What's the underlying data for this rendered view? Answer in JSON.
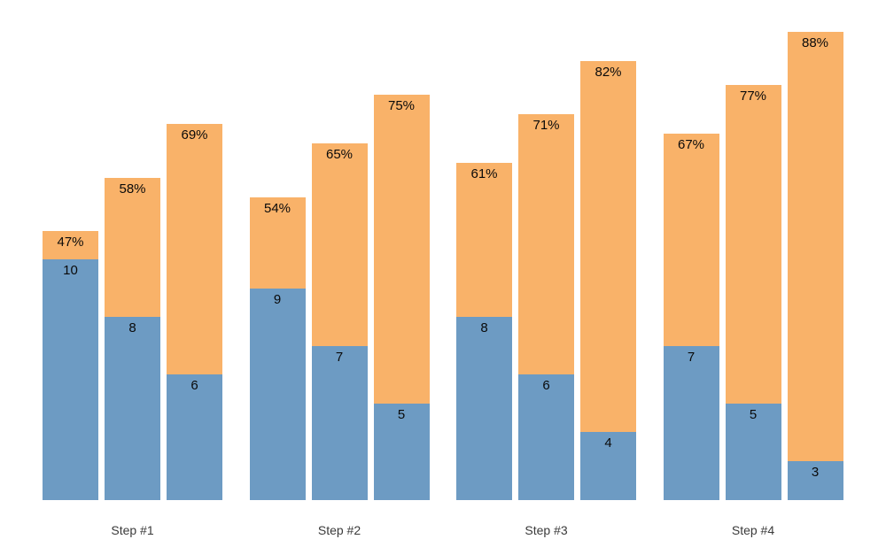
{
  "chart_data": {
    "type": "bar",
    "subtype": "grouped-stacked",
    "title": "",
    "xlabel": "",
    "ylabel": "",
    "grid": false,
    "legend": false,
    "axes_visible": false,
    "background_color": "#ffffff",
    "colors": {
      "bottom_segment": "#6d9bc3",
      "top_segment": "#f9b269",
      "bar_label_text": "#0a0a0a",
      "category_label_text": "#3a3a3a"
    },
    "categories": [
      "Step #1",
      "Step #2",
      "Step #3",
      "Step #4"
    ],
    "series": [
      {
        "name": "bottom-blue-values",
        "values_by_group": [
          [
            10,
            8,
            6
          ],
          [
            9,
            7,
            5
          ],
          [
            8,
            6,
            4
          ],
          [
            7,
            5,
            3
          ]
        ]
      },
      {
        "name": "top-orange-percentages",
        "values_by_group": [
          [
            47,
            58,
            69
          ],
          [
            54,
            65,
            75
          ],
          [
            61,
            71,
            82
          ],
          [
            67,
            77,
            88
          ]
        ]
      }
    ],
    "groups": [
      {
        "category": "Step #1",
        "bars": [
          {
            "value": 10,
            "value_label": "10",
            "percent": 47,
            "percent_label": "47%"
          },
          {
            "value": 8,
            "value_label": "8",
            "percent": 58,
            "percent_label": "58%"
          },
          {
            "value": 6,
            "value_label": "6",
            "percent": 69,
            "percent_label": "69%"
          }
        ]
      },
      {
        "category": "Step #2",
        "bars": [
          {
            "value": 9,
            "value_label": "9",
            "percent": 54,
            "percent_label": "54%"
          },
          {
            "value": 7,
            "value_label": "7",
            "percent": 65,
            "percent_label": "65%"
          },
          {
            "value": 5,
            "value_label": "5",
            "percent": 75,
            "percent_label": "75%"
          }
        ]
      },
      {
        "category": "Step #3",
        "bars": [
          {
            "value": 8,
            "value_label": "8",
            "percent": 61,
            "percent_label": "61%"
          },
          {
            "value": 6,
            "value_label": "6",
            "percent": 71,
            "percent_label": "71%"
          },
          {
            "value": 4,
            "value_label": "4",
            "percent": 82,
            "percent_label": "82%"
          }
        ]
      },
      {
        "category": "Step #4",
        "bars": [
          {
            "value": 7,
            "value_label": "7",
            "percent": 67,
            "percent_label": "67%"
          },
          {
            "value": 5,
            "value_label": "5",
            "percent": 77,
            "percent_label": "77%"
          },
          {
            "value": 3,
            "value_label": "3",
            "percent": 88,
            "percent_label": "88%"
          }
        ]
      }
    ]
  }
}
